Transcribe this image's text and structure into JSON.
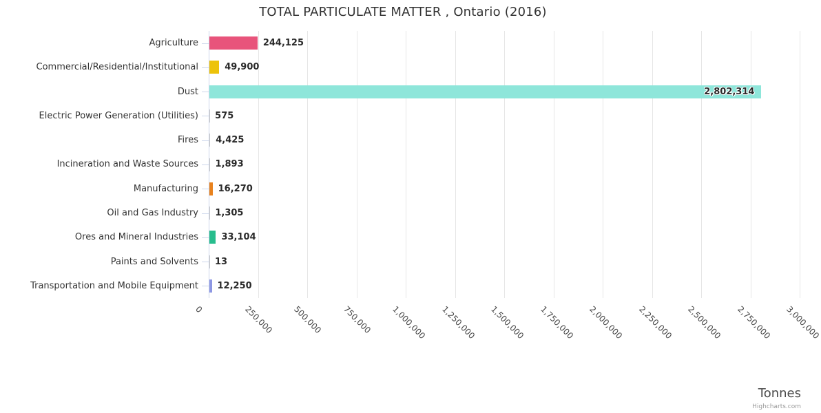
{
  "credits_label": "Highcharts.com",
  "colors": {
    "grid": "#e6e6e6",
    "axis_line": "#ccd6eb",
    "title_text": "#333333",
    "value_label_text": "#2a2a2a"
  },
  "chart_data": {
    "type": "bar",
    "orientation": "horizontal",
    "title": "TOTAL PARTICULATE MATTER , Ontario (2016)",
    "xlabel": "Tonnes",
    "ylabel": "",
    "xlim": [
      0,
      3000000
    ],
    "tick_interval": 250000,
    "grid": true,
    "legend": false,
    "tick_labels": [
      "0",
      "250,000",
      "500,000",
      "750,000",
      "1,000,000",
      "1,250,000",
      "1,500,000",
      "1,750,000",
      "2,000,000",
      "2,250,000",
      "2,500,000",
      "2,750,000",
      "3,000,000"
    ],
    "categories": [
      "Agriculture",
      "Commercial/Residential/Institutional",
      "Dust",
      "Electric Power Generation (Utilities)",
      "Fires",
      "Incineration and Waste Sources",
      "Manufacturing",
      "Oil and Gas Industry",
      "Ores and Mineral Industries",
      "Paints and Solvents",
      "Transportation and Mobile Equipment"
    ],
    "values": [
      244125,
      49900,
      2802314,
      575,
      4425,
      1893,
      16270,
      1305,
      33104,
      13,
      12250
    ],
    "value_labels": [
      "244,125",
      "49,900",
      "2,802,314",
      "575",
      "4,425",
      "1,893",
      "16,270",
      "1,305",
      "33,104",
      "13",
      "12,250"
    ],
    "bar_colors": [
      "#e8547b",
      "#edc30b",
      "#8ee6da",
      "#c9c9c9",
      "#c9c9c9",
      "#c9c9c9",
      "#e8821d",
      "#c9c9c9",
      "#27bd8d",
      "#c9c9c9",
      "#8d97e3"
    ]
  }
}
